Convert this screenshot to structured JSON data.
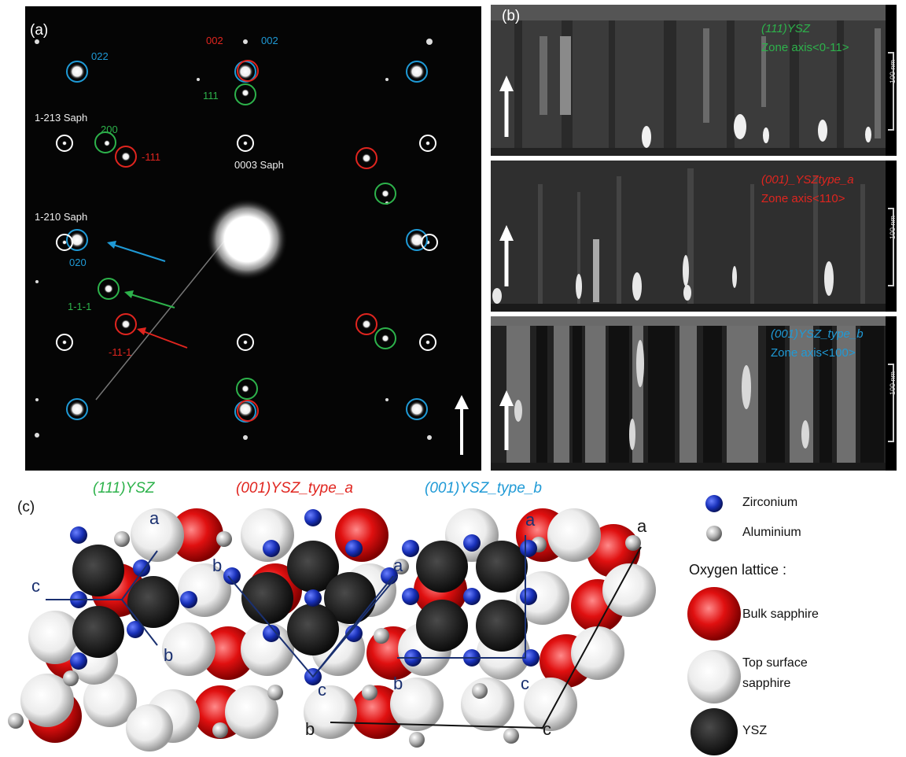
{
  "panel_a": {
    "label": "(a)",
    "spots": {
      "blue_022": "022",
      "red_002": "002",
      "blue_002": "002",
      "green_111": "111",
      "sapph_1213": "1-213 Saph",
      "green_200": "200",
      "red_m111": "-111",
      "sapph_0003": "0003 Saph",
      "sapph_1210": "1-210 Saph",
      "blue_020": "020",
      "green_1m1m1": "1-1-1",
      "red_m11m1": "-11-1"
    }
  },
  "panel_b": {
    "label": "(b)",
    "sections": [
      {
        "lattice": "(111)YSZ",
        "zone": "Zone axis<0-11>",
        "scale": "100 nm",
        "color": "#2db24b"
      },
      {
        "lattice": "(001)_YSZtype_a",
        "zone": "Zone axis<110>",
        "scale": "100 nm",
        "color": "#e0251f"
      },
      {
        "lattice": "(001)YSZ_type_b",
        "zone": "Zone axis<100>",
        "scale": "100 nm",
        "color": "#1f9ad6"
      }
    ]
  },
  "panel_c": {
    "label": "(c)",
    "titles": {
      "t111": "(111)YSZ",
      "type_a": "(001)YSZ_type_a",
      "type_b": "(001)YSZ_type_b"
    },
    "vectors": {
      "a": "a",
      "b": "b",
      "c": "c"
    },
    "legend": {
      "zirconium": "Zirconium",
      "aluminium": "Aluminium",
      "oxygen_heading": "Oxygen lattice :",
      "bulk": "Bulk sapphire",
      "top_line1": "Top surface",
      "top_line2": "sapphire",
      "ysz": "YSZ"
    }
  },
  "colors": {
    "green": "#2db24b",
    "red": "#e0251f",
    "blue": "#1f9ad6",
    "white": "#ffffff",
    "zirconium": "#1830b8",
    "ysz": "#1c1c1c",
    "bulk": "#e01010"
  }
}
